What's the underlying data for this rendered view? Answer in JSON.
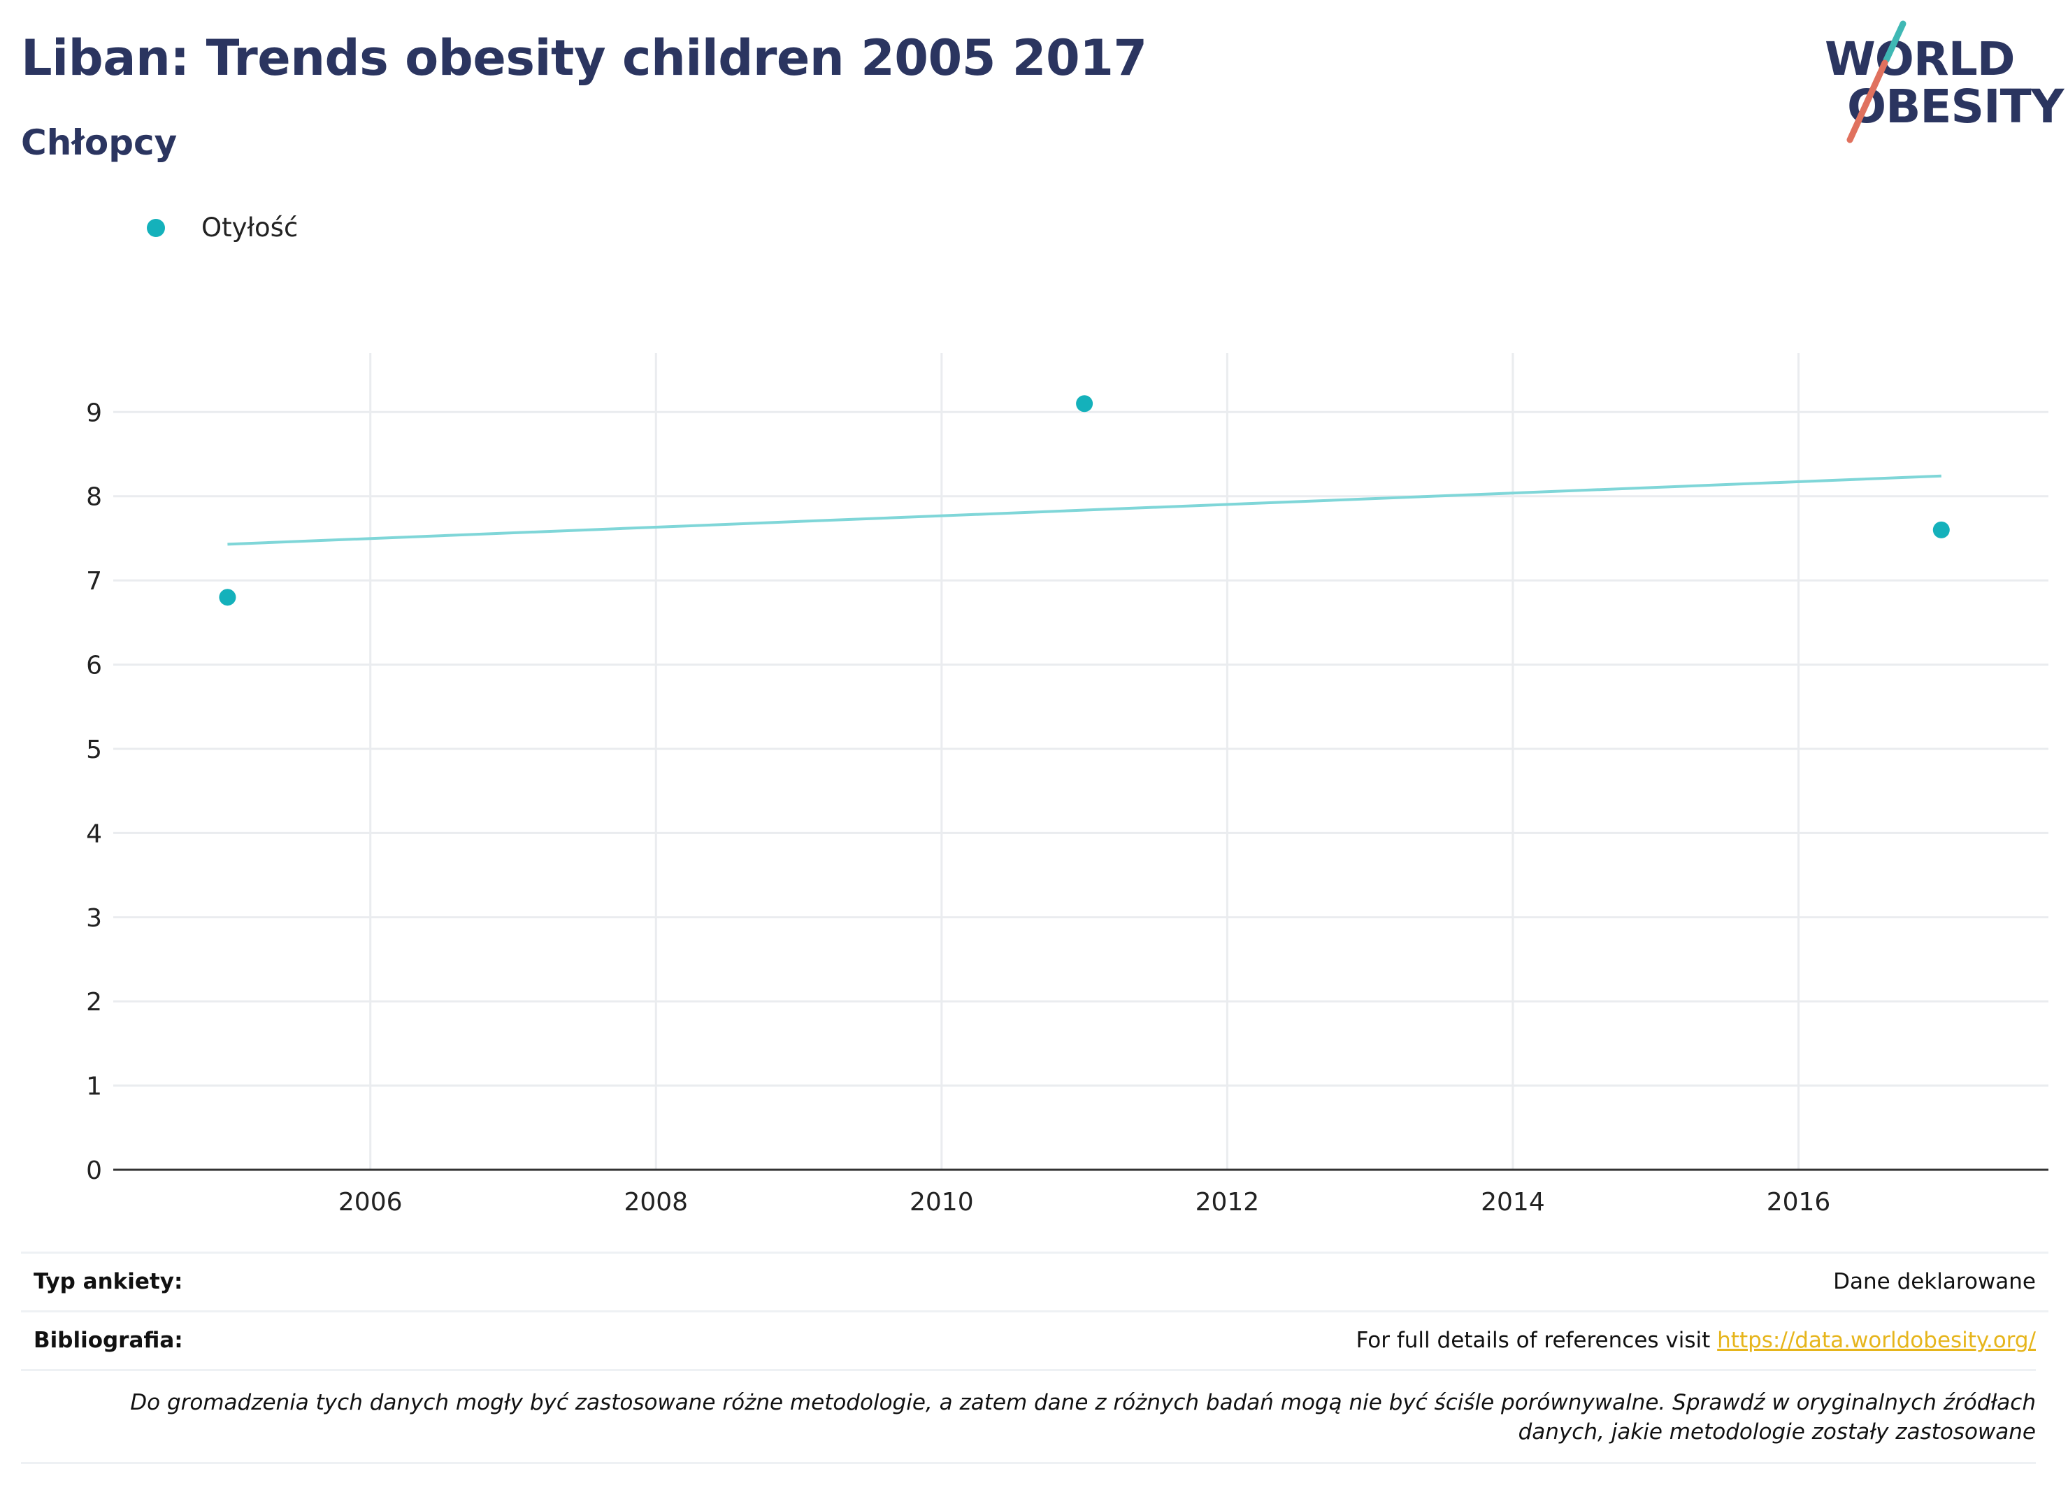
{
  "header": {
    "title": "Liban: Trends obesity children 2005 2017",
    "subtitle": "Chłopcy"
  },
  "logo": {
    "line1": "WORLD",
    "line2": "OBESITY",
    "colors": {
      "text": "#2b3560",
      "slash_top": "#3fb8b4",
      "slash_bottom": "#e0715e"
    }
  },
  "legend": {
    "items": [
      {
        "label": "Otyłość",
        "color": "#14b1bb"
      }
    ]
  },
  "chart_data": {
    "type": "scatter",
    "series": [
      {
        "name": "Otyłość",
        "x": [
          2005,
          2011,
          2017
        ],
        "y": [
          6.8,
          9.1,
          7.6
        ],
        "color": "#14b1bb"
      }
    ],
    "trendline": {
      "x": [
        2005,
        2017
      ],
      "y": [
        7.43,
        8.24
      ],
      "color": "#7fd6d8"
    },
    "xlim": [
      2004.2,
      2017.75
    ],
    "ylim": [
      0,
      9.7
    ],
    "x_ticks": [
      2006,
      2008,
      2010,
      2012,
      2014,
      2016
    ],
    "y_ticks": [
      0,
      1,
      2,
      3,
      4,
      5,
      6,
      7,
      8,
      9
    ],
    "grid": true,
    "title": "",
    "xlabel": "",
    "ylabel": ""
  },
  "footer": {
    "survey_type_label": "Typ ankiety:",
    "survey_type_value": "Dane deklarowane",
    "references_label": "Bibliografia:",
    "references_text": "For full details of references visit ",
    "references_link": "https://data.worldobesity.org/",
    "note_line1": "Do gromadzenia tych danych mogły być zastosowane różne metodologie, a zatem dane z różnych badań mogą nie być ściśle porównywalne. Sprawdź w oryginalnych źródłach",
    "note_line2": "danych, jakie metodologie zostały zastosowane"
  }
}
